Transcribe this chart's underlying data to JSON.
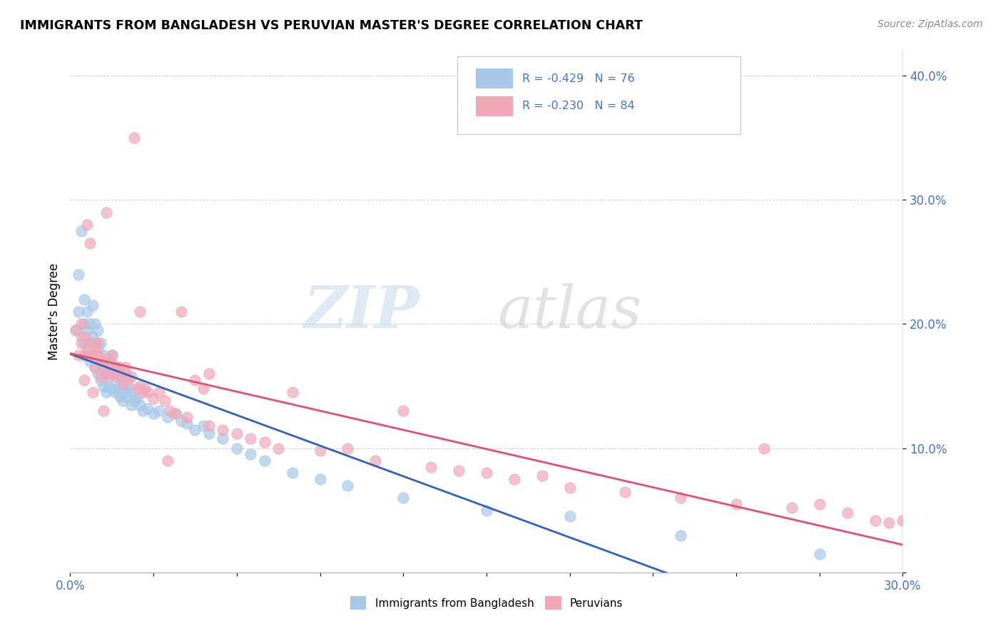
{
  "title": "IMMIGRANTS FROM BANGLADESH VS PERUVIAN MASTER'S DEGREE CORRELATION CHART",
  "source": "Source: ZipAtlas.com",
  "ylabel": "Master's Degree",
  "xlim": [
    0.0,
    0.3
  ],
  "ylim": [
    0.0,
    0.42
  ],
  "legend_r1": "R = -0.429",
  "legend_n1": "N = 76",
  "legend_r2": "R = -0.230",
  "legend_n2": "N = 84",
  "color_blue": "#a8c8e8",
  "color_pink": "#f0a8b8",
  "color_blue_line": "#3060c0",
  "color_pink_line": "#e05070",
  "color_text_blue": "#4472c4",
  "blue_x": [
    0.002,
    0.003,
    0.003,
    0.004,
    0.004,
    0.005,
    0.005,
    0.005,
    0.006,
    0.006,
    0.006,
    0.007,
    0.007,
    0.007,
    0.008,
    0.008,
    0.008,
    0.009,
    0.009,
    0.009,
    0.01,
    0.01,
    0.01,
    0.011,
    0.011,
    0.011,
    0.012,
    0.012,
    0.012,
    0.013,
    0.013,
    0.013,
    0.014,
    0.014,
    0.015,
    0.015,
    0.015,
    0.016,
    0.016,
    0.017,
    0.017,
    0.018,
    0.018,
    0.019,
    0.019,
    0.02,
    0.02,
    0.021,
    0.022,
    0.022,
    0.023,
    0.024,
    0.025,
    0.026,
    0.028,
    0.03,
    0.032,
    0.035,
    0.038,
    0.04,
    0.042,
    0.045,
    0.048,
    0.05,
    0.055,
    0.06,
    0.065,
    0.07,
    0.08,
    0.09,
    0.1,
    0.12,
    0.15,
    0.18,
    0.22,
    0.27
  ],
  "blue_y": [
    0.195,
    0.24,
    0.21,
    0.275,
    0.19,
    0.22,
    0.2,
    0.185,
    0.21,
    0.195,
    0.175,
    0.2,
    0.185,
    0.17,
    0.215,
    0.19,
    0.175,
    0.2,
    0.185,
    0.165,
    0.195,
    0.18,
    0.16,
    0.185,
    0.17,
    0.155,
    0.175,
    0.165,
    0.15,
    0.17,
    0.16,
    0.145,
    0.165,
    0.15,
    0.175,
    0.16,
    0.148,
    0.158,
    0.145,
    0.162,
    0.148,
    0.155,
    0.142,
    0.15,
    0.138,
    0.155,
    0.142,
    0.148,
    0.145,
    0.135,
    0.138,
    0.14,
    0.135,
    0.13,
    0.132,
    0.128,
    0.13,
    0.125,
    0.128,
    0.122,
    0.12,
    0.115,
    0.118,
    0.112,
    0.108,
    0.1,
    0.095,
    0.09,
    0.08,
    0.075,
    0.07,
    0.06,
    0.05,
    0.045,
    0.03,
    0.015
  ],
  "pink_x": [
    0.002,
    0.003,
    0.004,
    0.004,
    0.005,
    0.005,
    0.006,
    0.006,
    0.007,
    0.007,
    0.008,
    0.008,
    0.009,
    0.009,
    0.01,
    0.01,
    0.011,
    0.011,
    0.012,
    0.012,
    0.013,
    0.013,
    0.014,
    0.014,
    0.015,
    0.015,
    0.016,
    0.017,
    0.017,
    0.018,
    0.018,
    0.019,
    0.02,
    0.02,
    0.021,
    0.022,
    0.023,
    0.024,
    0.025,
    0.026,
    0.027,
    0.028,
    0.03,
    0.032,
    0.034,
    0.036,
    0.038,
    0.04,
    0.042,
    0.045,
    0.048,
    0.05,
    0.055,
    0.06,
    0.065,
    0.07,
    0.075,
    0.08,
    0.09,
    0.1,
    0.11,
    0.12,
    0.13,
    0.14,
    0.15,
    0.16,
    0.17,
    0.18,
    0.2,
    0.22,
    0.24,
    0.25,
    0.26,
    0.27,
    0.28,
    0.29,
    0.295,
    0.3,
    0.005,
    0.008,
    0.012,
    0.025,
    0.035,
    0.05
  ],
  "pink_y": [
    0.195,
    0.175,
    0.185,
    0.2,
    0.175,
    0.19,
    0.28,
    0.18,
    0.265,
    0.175,
    0.175,
    0.185,
    0.18,
    0.165,
    0.175,
    0.185,
    0.17,
    0.158,
    0.165,
    0.172,
    0.29,
    0.16,
    0.17,
    0.158,
    0.168,
    0.175,
    0.162,
    0.16,
    0.165,
    0.158,
    0.165,
    0.152,
    0.16,
    0.165,
    0.155,
    0.158,
    0.35,
    0.148,
    0.15,
    0.145,
    0.148,
    0.145,
    0.14,
    0.145,
    0.138,
    0.13,
    0.128,
    0.21,
    0.125,
    0.155,
    0.148,
    0.118,
    0.115,
    0.112,
    0.108,
    0.105,
    0.1,
    0.145,
    0.098,
    0.1,
    0.09,
    0.13,
    0.085,
    0.082,
    0.08,
    0.075,
    0.078,
    0.068,
    0.065,
    0.06,
    0.055,
    0.1,
    0.052,
    0.055,
    0.048,
    0.042,
    0.04,
    0.042,
    0.155,
    0.145,
    0.13,
    0.21,
    0.09,
    0.16
  ]
}
